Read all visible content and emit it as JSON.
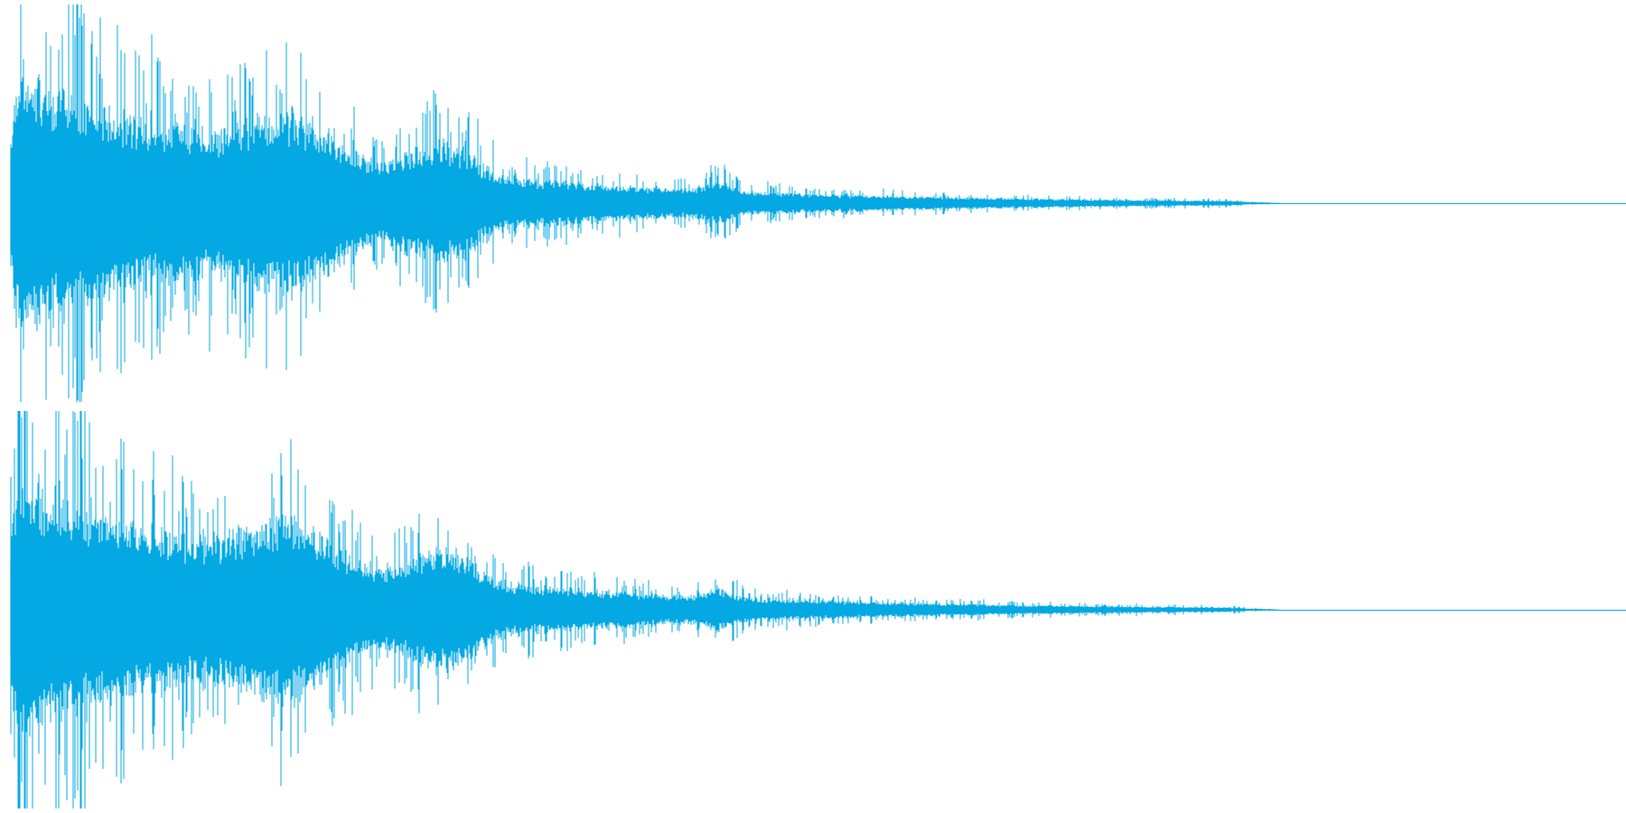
{
  "waveform": {
    "wave_color": "#04a8e2",
    "background_color": "#ffffff",
    "channel_count": 2
  }
}
